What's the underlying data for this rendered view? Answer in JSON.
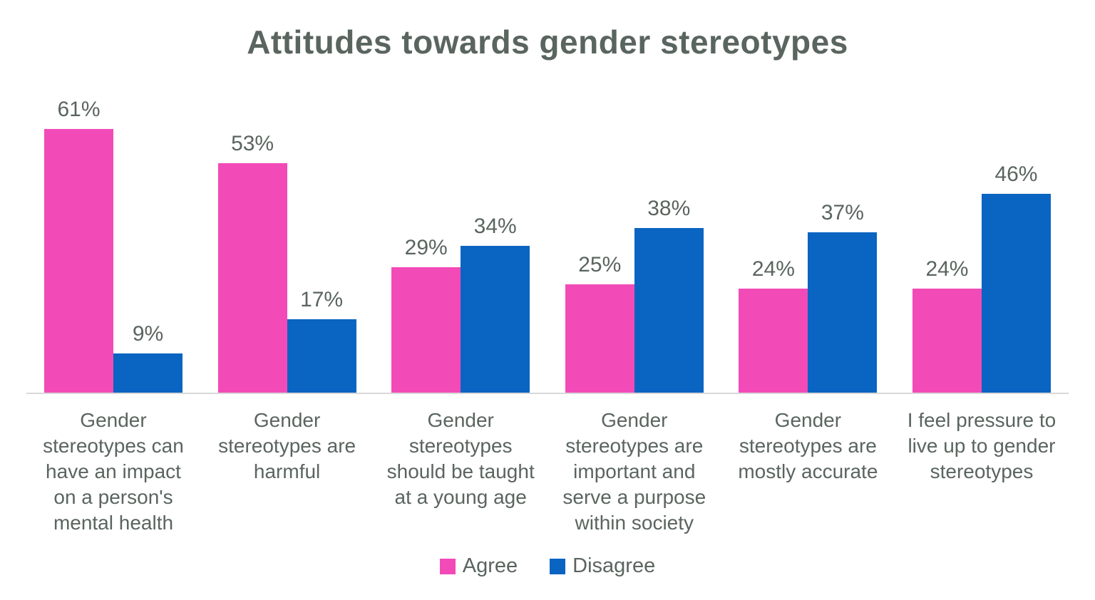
{
  "title": "Attitudes towards gender stereotypes",
  "chart_data": {
    "type": "bar",
    "title": "Attitudes towards gender stereotypes",
    "categories": [
      "Gender stereotypes can have an impact on a person's mental health",
      "Gender stereotypes are harmful",
      "Gender stereotypes should be taught at a young age",
      "Gender stereotypes are important and serve a purpose within society",
      "Gender stereotypes are mostly accurate",
      "I feel pressure to live up to gender stereotypes"
    ],
    "series": [
      {
        "name": "Agree",
        "color": "#F24BB8",
        "values": [
          61,
          53,
          29,
          25,
          24,
          24
        ]
      },
      {
        "name": "Disagree",
        "color": "#0A64C2",
        "values": [
          9,
          17,
          34,
          38,
          37,
          46
        ]
      }
    ],
    "value_suffix": "%",
    "data_labels": true,
    "ylim": [
      0,
      65
    ],
    "grid": false,
    "legend_position": "bottom",
    "axis_line_color": "#D9D9D9",
    "text_color": "#5A655F"
  }
}
